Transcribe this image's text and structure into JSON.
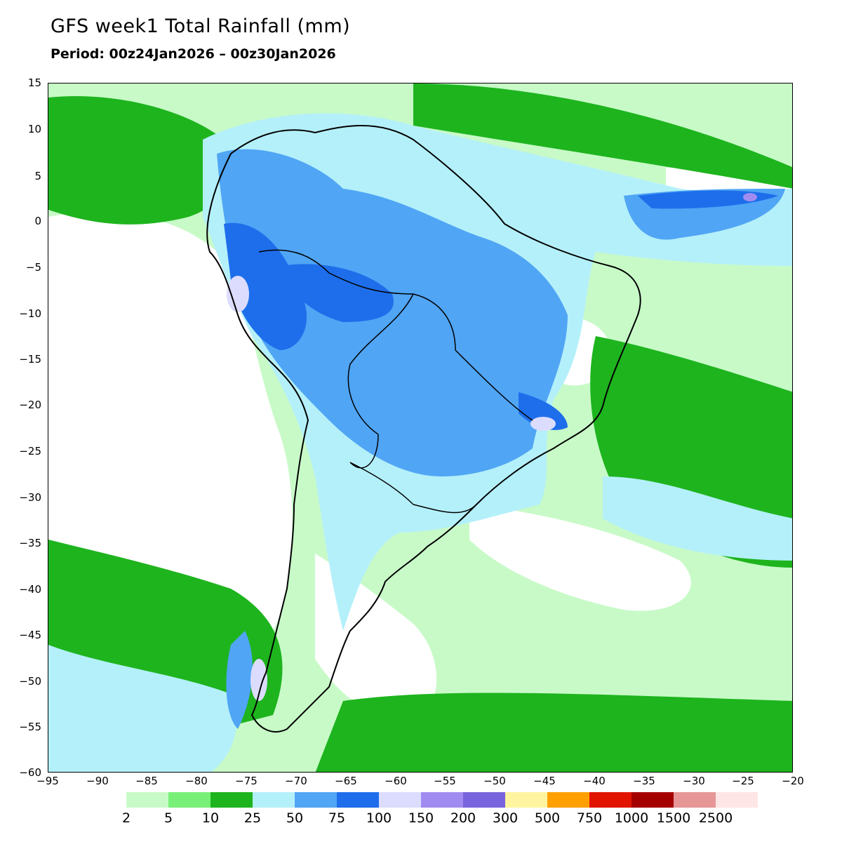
{
  "title": "GFS week1 Total Rainfall (mm)",
  "subtitle": "Period: 00z24Jan2026 – 00z30Jan2026",
  "map": {
    "lon_range": [
      -95,
      -20
    ],
    "lat_range": [
      -60,
      15
    ],
    "y_ticks": [
      "15",
      "10",
      "5",
      "0",
      "−5",
      "−10",
      "−15",
      "−20",
      "−25",
      "−30",
      "−35",
      "−40",
      "−45",
      "−50",
      "−55",
      "−60"
    ],
    "x_ticks": [
      "−95",
      "−90",
      "−85",
      "−80",
      "−75",
      "−70",
      "−65",
      "−60",
      "−55",
      "−50",
      "−45",
      "−40",
      "−35",
      "−30",
      "−25",
      "−20"
    ],
    "continent_outline": "South America with national and state boundaries"
  },
  "legend": {
    "colors": [
      "#c8fac8",
      "#78f078",
      "#1eb41e",
      "#b4f0fa",
      "#50a5f5",
      "#1e6eeb",
      "#dcdcff",
      "#a08cf0",
      "#7864dc",
      "#fff5a0",
      "#ffa000",
      "#e11400",
      "#a50000",
      "#e69696",
      "#ffe6e6"
    ],
    "labels": [
      "2",
      "5",
      "10",
      "25",
      "50",
      "75",
      "100",
      "150",
      "200",
      "300",
      "500",
      "750",
      "1000",
      "1500",
      "2500"
    ]
  }
}
